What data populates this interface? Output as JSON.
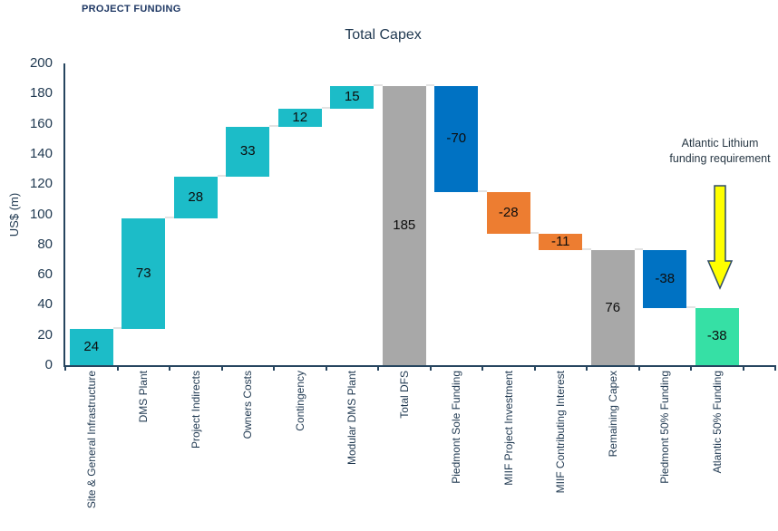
{
  "eyebrow": "PROJECT FUNDING",
  "chart_data": {
    "type": "bar",
    "subtype": "waterfall",
    "title": "Total Capex",
    "xlabel": "",
    "ylabel": "US$ (m)",
    "ylim": [
      0,
      200
    ],
    "ytick_step": 20,
    "grid": false,
    "legend_position": "none",
    "categories": [
      "Site & General Infrastructure",
      "DMS Plant",
      "Project Indirects",
      "Owners Costs",
      "Contingency",
      "Modular DMS Plant",
      "Total DFS",
      "Piedmont Sole Funding",
      "MIIF Project Investment",
      "MIIF Contributing Interest",
      "Remaining Capex",
      "Piedmont 50% Funding",
      "Atlantic 50% Funding"
    ],
    "values": [
      24,
      73,
      28,
      33,
      12,
      15,
      185,
      -70,
      -28,
      -11,
      76,
      -38,
      -38
    ],
    "bars": [
      {
        "label": "Site & General Infrastructure",
        "value": 24,
        "display": "24",
        "kind": "relative",
        "color": "teal"
      },
      {
        "label": "DMS Plant",
        "value": 73,
        "display": "73",
        "kind": "relative",
        "color": "teal"
      },
      {
        "label": "Project Indirects",
        "value": 28,
        "display": "28",
        "kind": "relative",
        "color": "teal"
      },
      {
        "label": "Owners Costs",
        "value": 33,
        "display": "33",
        "kind": "relative",
        "color": "teal"
      },
      {
        "label": "Contingency",
        "value": 12,
        "display": "12",
        "kind": "relative",
        "color": "teal"
      },
      {
        "label": "Modular DMS Plant",
        "value": 15,
        "display": "15",
        "kind": "relative",
        "color": "teal"
      },
      {
        "label": "Total DFS",
        "value": 185,
        "display": "185",
        "kind": "total",
        "color": "gray"
      },
      {
        "label": "Piedmont Sole Funding",
        "value": -70,
        "display": "-70",
        "kind": "relative",
        "color": "blue"
      },
      {
        "label": "MIIF Project Investment",
        "value": -28,
        "display": "-28",
        "kind": "relative",
        "color": "orange"
      },
      {
        "label": "MIIF Contributing Interest",
        "value": -11,
        "display": "-11",
        "kind": "relative",
        "color": "orange"
      },
      {
        "label": "Remaining Capex",
        "value": 76,
        "display": "76",
        "kind": "total",
        "color": "gray"
      },
      {
        "label": "Piedmont 50% Funding",
        "value": -38,
        "display": "-38",
        "kind": "relative",
        "color": "blue"
      },
      {
        "label": "Atlantic 50% Funding",
        "value": -38,
        "display": "-38",
        "kind": "relative",
        "color": "green"
      }
    ],
    "palette": {
      "teal": "#1CBCC8",
      "gray": "#A8A8A8",
      "blue": "#0072C3",
      "orange": "#ED7D31",
      "green": "#36E0A5",
      "axis": "#26455F",
      "connector": "#E3E3E3",
      "arrow_fill": "#FFFF00",
      "arrow_stroke": "#2E4B66"
    },
    "annotation": {
      "text_lines": [
        "Atlantic Lithium",
        "funding requirement"
      ],
      "arrow": "down-yellow"
    }
  }
}
